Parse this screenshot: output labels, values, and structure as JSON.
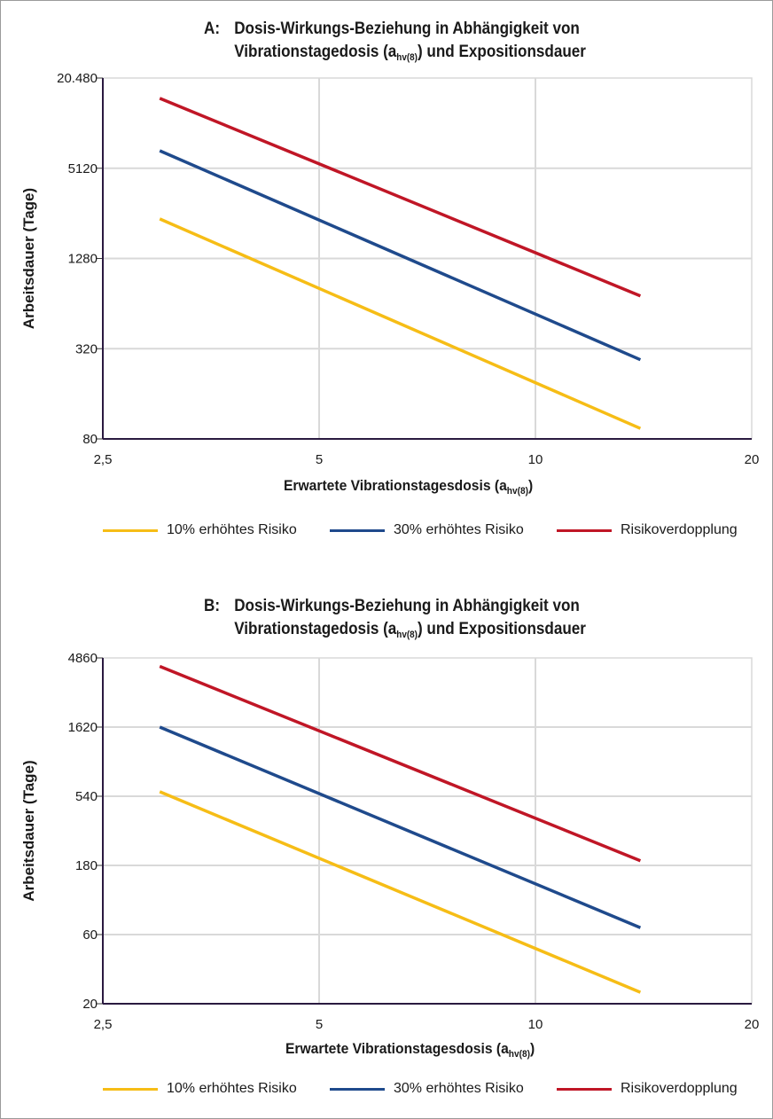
{
  "chart_data": [
    {
      "type": "line",
      "panel_letter": "A:",
      "title_line1": "Dosis-Wirkungs-Beziehung in Abhängigkeit von",
      "title_line2_pre": "Vibrationstagedosis (a",
      "title_line2_sub": "hv(8)",
      "title_line2_post": ") und Expositionsdauer",
      "xlabel_pre": "Erwartete Vibrationstagesdosis (a",
      "xlabel_sub": "hv(8)",
      "xlabel_post": ")",
      "ylabel": "Arbeitsdauer (Tage)",
      "x_scale": "log",
      "y_scale": "log",
      "xlim": [
        2.5,
        20
      ],
      "ylim": [
        80,
        20480
      ],
      "x_ticks": [
        2.5,
        5,
        10,
        20
      ],
      "x_tick_labels": [
        "2,5",
        "5",
        "10",
        "20"
      ],
      "y_ticks": [
        80,
        320,
        1280,
        5120,
        20480
      ],
      "y_tick_labels": [
        "80",
        "320",
        "1280",
        "5120",
        "20.480"
      ],
      "grid": true,
      "legend_position": "bottom",
      "series": [
        {
          "name": "10% erhöhtes Risiko",
          "color": "#f6bd16",
          "x": [
            3,
            14
          ],
          "y": [
            2350,
            94
          ]
        },
        {
          "name": "30% erhöhtes Risiko",
          "color": "#1f4a8c",
          "x": [
            3,
            14
          ],
          "y": [
            6700,
            270
          ]
        },
        {
          "name": "Risikoverdopplung",
          "color": "#c01626",
          "x": [
            3,
            14
          ],
          "y": [
            15000,
            720
          ]
        }
      ]
    },
    {
      "type": "line",
      "panel_letter": "B:",
      "title_line1": "Dosis-Wirkungs-Beziehung in Abhängigkeit von",
      "title_line2_pre": "Vibrationstagedosis (a",
      "title_line2_sub": "hv(8)",
      "title_line2_post": ") und Expositionsdauer",
      "xlabel_pre": "Erwartete Vibrationstagesdosis (a",
      "xlabel_sub": "hv(8)",
      "xlabel_post": ")",
      "ylabel": "Arbeitsdauer (Tage)",
      "x_scale": "log",
      "y_scale": "log",
      "xlim": [
        2.5,
        20
      ],
      "ylim": [
        20,
        4860
      ],
      "x_ticks": [
        2.5,
        5,
        10,
        20
      ],
      "x_tick_labels": [
        "2,5",
        "5",
        "10",
        "20"
      ],
      "y_ticks": [
        20,
        60,
        180,
        540,
        1620,
        4860
      ],
      "y_tick_labels": [
        "20",
        "60",
        "180",
        "540",
        "1620",
        "4860"
      ],
      "grid": true,
      "legend_position": "bottom",
      "series": [
        {
          "name": "10% erhöhtes Risiko",
          "color": "#f6bd16",
          "x": [
            3,
            14
          ],
          "y": [
            580,
            24
          ]
        },
        {
          "name": "30% erhöhtes Risiko",
          "color": "#1f4a8c",
          "x": [
            3,
            14
          ],
          "y": [
            1620,
            67
          ]
        },
        {
          "name": "Risikoverdopplung",
          "color": "#c01626",
          "x": [
            3,
            14
          ],
          "y": [
            4250,
            194
          ]
        }
      ]
    }
  ]
}
